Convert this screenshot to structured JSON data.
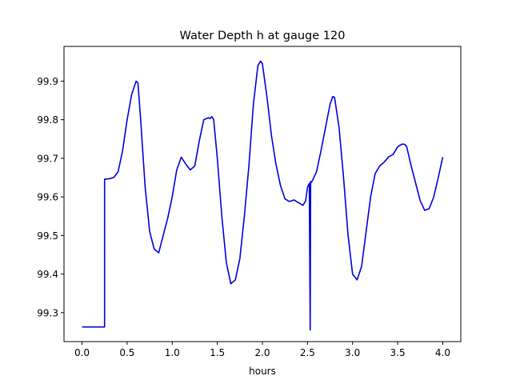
{
  "chart_data": {
    "type": "line",
    "title": "Water Depth h at gauge 120",
    "xlabel": "hours",
    "ylabel": "",
    "xlim": [
      -0.2,
      4.2
    ],
    "ylim": [
      99.225,
      99.99
    ],
    "x_ticks": [
      0.0,
      0.5,
      1.0,
      1.5,
      2.0,
      2.5,
      3.0,
      3.5,
      4.0
    ],
    "x_tick_labels": [
      "0.0",
      "0.5",
      "1.0",
      "1.5",
      "2.0",
      "2.5",
      "3.0",
      "3.5",
      "4.0"
    ],
    "y_ticks": [
      99.3,
      99.4,
      99.5,
      99.6,
      99.7,
      99.8,
      99.9
    ],
    "y_tick_labels": [
      "99.3",
      "99.4",
      "99.5",
      "99.6",
      "99.7",
      "99.8",
      "99.9"
    ],
    "grid": false,
    "series": [
      {
        "color": "#0000dd",
        "x": [
          0.0,
          0.25,
          0.25,
          0.26,
          0.3,
          0.35,
          0.4,
          0.45,
          0.5,
          0.55,
          0.6,
          0.62,
          0.65,
          0.7,
          0.75,
          0.8,
          0.85,
          0.9,
          0.95,
          1.0,
          1.05,
          1.1,
          1.15,
          1.2,
          1.25,
          1.3,
          1.35,
          1.4,
          1.42,
          1.44,
          1.46,
          1.5,
          1.55,
          1.6,
          1.65,
          1.7,
          1.75,
          1.8,
          1.85,
          1.9,
          1.95,
          1.98,
          2.0,
          2.05,
          2.1,
          2.15,
          2.2,
          2.25,
          2.3,
          2.35,
          2.4,
          2.45,
          2.48,
          2.5,
          2.52,
          2.53,
          2.535,
          2.54,
          2.55,
          2.6,
          2.65,
          2.7,
          2.75,
          2.78,
          2.8,
          2.85,
          2.9,
          2.95,
          3.0,
          3.05,
          3.1,
          3.15,
          3.2,
          3.25,
          3.3,
          3.35,
          3.4,
          3.45,
          3.5,
          3.55,
          3.58,
          3.6,
          3.65,
          3.7,
          3.75,
          3.8,
          3.85,
          3.9,
          3.95,
          4.0
        ],
        "y": [
          99.263,
          99.263,
          99.646,
          99.646,
          99.647,
          99.65,
          99.665,
          99.72,
          99.8,
          99.865,
          99.9,
          99.895,
          99.8,
          99.625,
          99.51,
          99.465,
          99.455,
          99.5,
          99.545,
          99.6,
          99.67,
          99.703,
          99.685,
          99.67,
          99.68,
          99.745,
          99.8,
          99.805,
          99.803,
          99.808,
          99.8,
          99.7,
          99.55,
          99.43,
          99.375,
          99.385,
          99.44,
          99.55,
          99.68,
          99.84,
          99.94,
          99.952,
          99.945,
          99.86,
          99.76,
          99.685,
          99.63,
          99.595,
          99.588,
          99.592,
          99.585,
          99.578,
          99.59,
          99.625,
          99.635,
          99.255,
          99.64,
          99.637,
          99.64,
          99.665,
          99.72,
          99.78,
          99.84,
          99.86,
          99.858,
          99.78,
          99.65,
          99.5,
          99.4,
          99.385,
          99.42,
          99.51,
          99.6,
          99.66,
          99.68,
          99.69,
          99.704,
          99.71,
          99.73,
          99.737,
          99.736,
          99.73,
          99.68,
          99.635,
          99.59,
          99.565,
          99.57,
          99.6,
          99.65,
          99.703
        ]
      }
    ]
  }
}
